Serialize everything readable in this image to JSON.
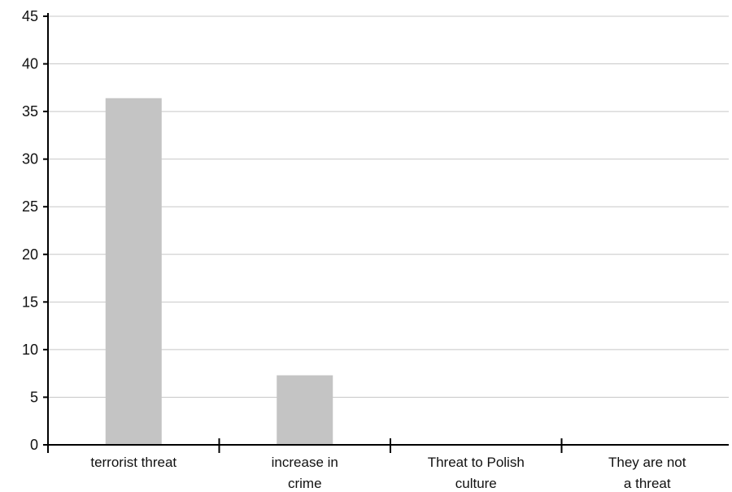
{
  "chart_data": {
    "type": "bar",
    "title": "",
    "xlabel": "",
    "ylabel": "",
    "categories": [
      [
        "terrorist threat"
      ],
      [
        "increase in",
        "crime"
      ],
      [
        "Threat to Polish",
        "culture"
      ],
      [
        "They are not",
        "a threat"
      ]
    ],
    "values": [
      36.4,
      7.3,
      0,
      0
    ],
    "ylim": [
      0,
      45
    ],
    "yticks": [
      0,
      5,
      10,
      15,
      20,
      25,
      30,
      35,
      40,
      45
    ],
    "grid": true,
    "legend": "none",
    "bar_color": "#c4c4c4",
    "grid_color": "#c8c8c8",
    "axis_color": "#000000"
  }
}
